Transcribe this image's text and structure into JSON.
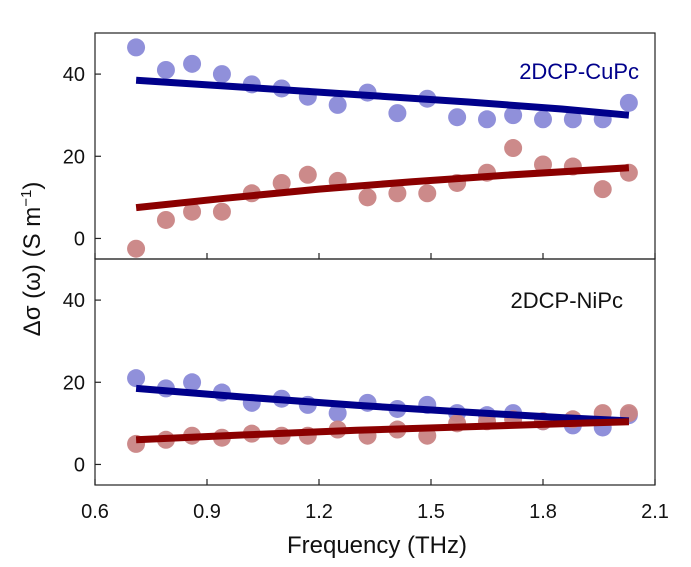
{
  "chart_data": {
    "type": "scatter",
    "xlabel": "Frequency (THz)",
    "ylabel_main": "Δσ (ω) (S m",
    "ylabel_sup": "−1",
    "ylabel_close": ")",
    "xlim": [
      0.6,
      2.1
    ],
    "x_ticks": [
      0.6,
      0.9,
      1.2,
      1.5,
      1.8,
      2.1
    ],
    "x_tick_labels": [
      "0.6",
      "0.9",
      "1.2",
      "1.5",
      "1.8",
      "2.1"
    ],
    "colors": {
      "real_points": "#8a8ad8",
      "imag_points": "#c98484",
      "real_fit": "#00008b",
      "imag_fit": "#8b0000",
      "cu_label": "#00008b",
      "ni_label": "#111111"
    },
    "panels": [
      {
        "name": "top",
        "label": "2DCP-CuPc",
        "ylim": [
          -5,
          50
        ],
        "y_ticks": [
          0,
          20,
          40
        ],
        "y_tick_labels": [
          "0",
          "20",
          "40"
        ],
        "series": [
          {
            "name": "real",
            "x": [
              0.71,
              0.79,
              0.86,
              0.94,
              1.02,
              1.1,
              1.17,
              1.25,
              1.33,
              1.41,
              1.49,
              1.57,
              1.65,
              1.72,
              1.8,
              1.88,
              1.96,
              2.03
            ],
            "y": [
              46.5,
              41.0,
              42.5,
              40.0,
              37.5,
              36.5,
              34.5,
              32.5,
              35.5,
              30.5,
              34.0,
              29.5,
              29.0,
              30.0,
              29.0,
              29.0,
              29.0,
              33.0
            ]
          },
          {
            "name": "imaginary",
            "x": [
              0.71,
              0.79,
              0.86,
              0.94,
              1.02,
              1.1,
              1.17,
              1.25,
              1.33,
              1.41,
              1.49,
              1.57,
              1.65,
              1.72,
              1.8,
              1.88,
              1.96,
              2.03
            ],
            "y": [
              -2.5,
              4.5,
              6.5,
              6.5,
              11.0,
              13.5,
              15.5,
              14.0,
              10.0,
              11.0,
              11.0,
              13.5,
              16.0,
              22.0,
              18.0,
              17.5,
              12.0,
              16.0
            ]
          }
        ],
        "fits": [
          {
            "name": "real-fit",
            "x": [
              0.71,
              1.0,
              1.3,
              1.6,
              1.85,
              2.03
            ],
            "y": [
              38.5,
              36.8,
              35.0,
              33.2,
              31.5,
              30.0
            ]
          },
          {
            "name": "imaginary-fit",
            "x": [
              0.71,
              0.95,
              1.2,
              1.45,
              1.7,
              2.03
            ],
            "y": [
              7.5,
              9.8,
              12.0,
              13.8,
              15.4,
              17.2
            ]
          }
        ]
      },
      {
        "name": "bottom",
        "label": "2DCP-NiPc",
        "ylim": [
          -5,
          50
        ],
        "y_ticks": [
          0,
          20,
          40
        ],
        "y_tick_labels": [
          "0",
          "20",
          "40"
        ],
        "series": [
          {
            "name": "real",
            "x": [
              0.71,
              0.79,
              0.86,
              0.94,
              1.02,
              1.1,
              1.17,
              1.25,
              1.33,
              1.41,
              1.49,
              1.57,
              1.65,
              1.72,
              1.8,
              1.88,
              1.96,
              2.03
            ],
            "y": [
              21.0,
              18.5,
              20.0,
              17.5,
              15.0,
              16.0,
              14.5,
              12.5,
              15.0,
              13.5,
              14.5,
              12.5,
              12.0,
              12.5,
              10.5,
              9.5,
              9.0,
              12.0
            ]
          },
          {
            "name": "imaginary",
            "x": [
              0.71,
              0.79,
              0.86,
              0.94,
              1.02,
              1.1,
              1.17,
              1.25,
              1.33,
              1.41,
              1.49,
              1.57,
              1.65,
              1.72,
              1.8,
              1.88,
              1.96,
              2.03
            ],
            "y": [
              5.0,
              6.0,
              7.0,
              6.5,
              7.5,
              7.0,
              7.0,
              8.5,
              7.0,
              8.5,
              7.0,
              10.0,
              10.5,
              11.0,
              10.5,
              11.0,
              12.5,
              12.5
            ]
          }
        ],
        "fits": [
          {
            "name": "real-fit",
            "x": [
              0.71,
              1.0,
              1.3,
              1.6,
              1.85,
              2.03
            ],
            "y": [
              18.5,
              16.4,
              14.4,
              12.7,
              11.4,
              10.6
            ]
          },
          {
            "name": "imaginary-fit",
            "x": [
              0.71,
              1.0,
              1.3,
              1.6,
              1.85,
              2.03
            ],
            "y": [
              6.0,
              7.2,
              8.3,
              9.2,
              9.9,
              10.4
            ]
          }
        ]
      }
    ]
  }
}
